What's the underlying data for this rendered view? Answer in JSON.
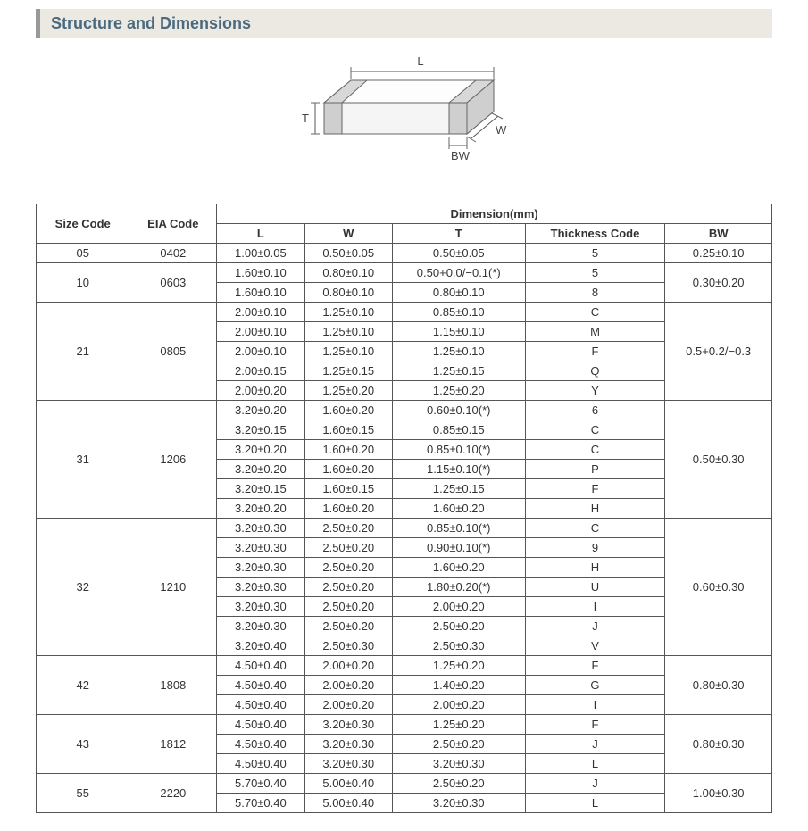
{
  "section_title": "Structure and Dimensions",
  "diagram": {
    "labels": {
      "L": "L",
      "W": "W",
      "T": "T",
      "BW": "BW"
    },
    "stroke_color": "#666",
    "fill_color": "#fdfdfd",
    "fill_shade": "#e8e8e8",
    "band_color": "#cfcfcf"
  },
  "table": {
    "headers": {
      "size_code": "Size Code",
      "eia_code": "EIA Code",
      "dimension": "Dimension(mm)",
      "L": "L",
      "W": "W",
      "T": "T",
      "thickness_code": "Thickness  Code",
      "BW": "BW"
    },
    "groups": [
      {
        "size_code": "05",
        "eia_code": "0402",
        "bw": "0.25±0.10",
        "rows": [
          {
            "L": "1.00±0.05",
            "W": "0.50±0.05",
            "T": "0.50±0.05",
            "tc": "5"
          }
        ]
      },
      {
        "size_code": "10",
        "eia_code": "0603",
        "bw": "0.30±0.20",
        "rows": [
          {
            "L": "1.60±0.10",
            "W": "0.80±0.10",
            "T": "0.50+0.0/−0.1(*)",
            "tc": "5"
          },
          {
            "L": "1.60±0.10",
            "W": "0.80±0.10",
            "T": "0.80±0.10",
            "tc": "8"
          }
        ]
      },
      {
        "size_code": "21",
        "eia_code": "0805",
        "bw": "0.5+0.2/−0.3",
        "rows": [
          {
            "L": "2.00±0.10",
            "W": "1.25±0.10",
            "T": "0.85±0.10",
            "tc": "C"
          },
          {
            "L": "2.00±0.10",
            "W": "1.25±0.10",
            "T": "1.15±0.10",
            "tc": "M"
          },
          {
            "L": "2.00±0.10",
            "W": "1.25±0.10",
            "T": "1.25±0.10",
            "tc": "F"
          },
          {
            "L": "2.00±0.15",
            "W": "1.25±0.15",
            "T": "1.25±0.15",
            "tc": "Q"
          },
          {
            "L": "2.00±0.20",
            "W": "1.25±0.20",
            "T": "1.25±0.20",
            "tc": "Y"
          }
        ]
      },
      {
        "size_code": "31",
        "eia_code": "1206",
        "bw": "0.50±0.30",
        "rows": [
          {
            "L": "3.20±0.20",
            "W": "1.60±0.20",
            "T": "0.60±0.10(*)",
            "tc": "6"
          },
          {
            "L": "3.20±0.15",
            "W": "1.60±0.15",
            "T": "0.85±0.15",
            "tc": "C"
          },
          {
            "L": "3.20±0.20",
            "W": "1.60±0.20",
            "T": "0.85±0.10(*)",
            "tc": "C"
          },
          {
            "L": "3.20±0.20",
            "W": "1.60±0.20",
            "T": "1.15±0.10(*)",
            "tc": "P"
          },
          {
            "L": "3.20±0.15",
            "W": "1.60±0.15",
            "T": "1.25±0.15",
            "tc": "F"
          },
          {
            "L": "3.20±0.20",
            "W": "1.60±0.20",
            "T": "1.60±0.20",
            "tc": "H"
          }
        ]
      },
      {
        "size_code": "32",
        "eia_code": "1210",
        "bw": "0.60±0.30",
        "rows": [
          {
            "L": "3.20±0.30",
            "W": "2.50±0.20",
            "T": "0.85±0.10(*)",
            "tc": "C"
          },
          {
            "L": "3.20±0.30",
            "W": "2.50±0.20",
            "T": "0.90±0.10(*)",
            "tc": "9"
          },
          {
            "L": "3.20±0.30",
            "W": "2.50±0.20",
            "T": "1.60±0.20",
            "tc": "H"
          },
          {
            "L": "3.20±0.30",
            "W": "2.50±0.20",
            "T": "1.80±0.20(*)",
            "tc": "U"
          },
          {
            "L": "3.20±0.30",
            "W": "2.50±0.20",
            "T": "2.00±0.20",
            "tc": "I"
          },
          {
            "L": "3.20±0.30",
            "W": "2.50±0.20",
            "T": "2.50±0.20",
            "tc": "J"
          },
          {
            "L": "3.20±0.40",
            "W": "2.50±0.30",
            "T": "2.50±0.30",
            "tc": "V"
          }
        ]
      },
      {
        "size_code": "42",
        "eia_code": "1808",
        "bw": "0.80±0.30",
        "rows": [
          {
            "L": "4.50±0.40",
            "W": "2.00±0.20",
            "T": "1.25±0.20",
            "tc": "F"
          },
          {
            "L": "4.50±0.40",
            "W": "2.00±0.20",
            "T": "1.40±0.20",
            "tc": "G"
          },
          {
            "L": "4.50±0.40",
            "W": "2.00±0.20",
            "T": "2.00±0.20",
            "tc": "I"
          }
        ]
      },
      {
        "size_code": "43",
        "eia_code": "1812",
        "bw": "0.80±0.30",
        "rows": [
          {
            "L": "4.50±0.40",
            "W": "3.20±0.30",
            "T": "1.25±0.20",
            "tc": "F"
          },
          {
            "L": "4.50±0.40",
            "W": "3.20±0.30",
            "T": "2.50±0.20",
            "tc": "J"
          },
          {
            "L": "4.50±0.40",
            "W": "3.20±0.30",
            "T": "3.20±0.30",
            "tc": "L"
          }
        ]
      },
      {
        "size_code": "55",
        "eia_code": "2220",
        "bw": "1.00±0.30",
        "rows": [
          {
            "L": "5.70±0.40",
            "W": "5.00±0.40",
            "T": "2.50±0.20",
            "tc": "J"
          },
          {
            "L": "5.70±0.40",
            "W": "5.00±0.40",
            "T": "3.20±0.30",
            "tc": "L"
          }
        ]
      }
    ]
  }
}
